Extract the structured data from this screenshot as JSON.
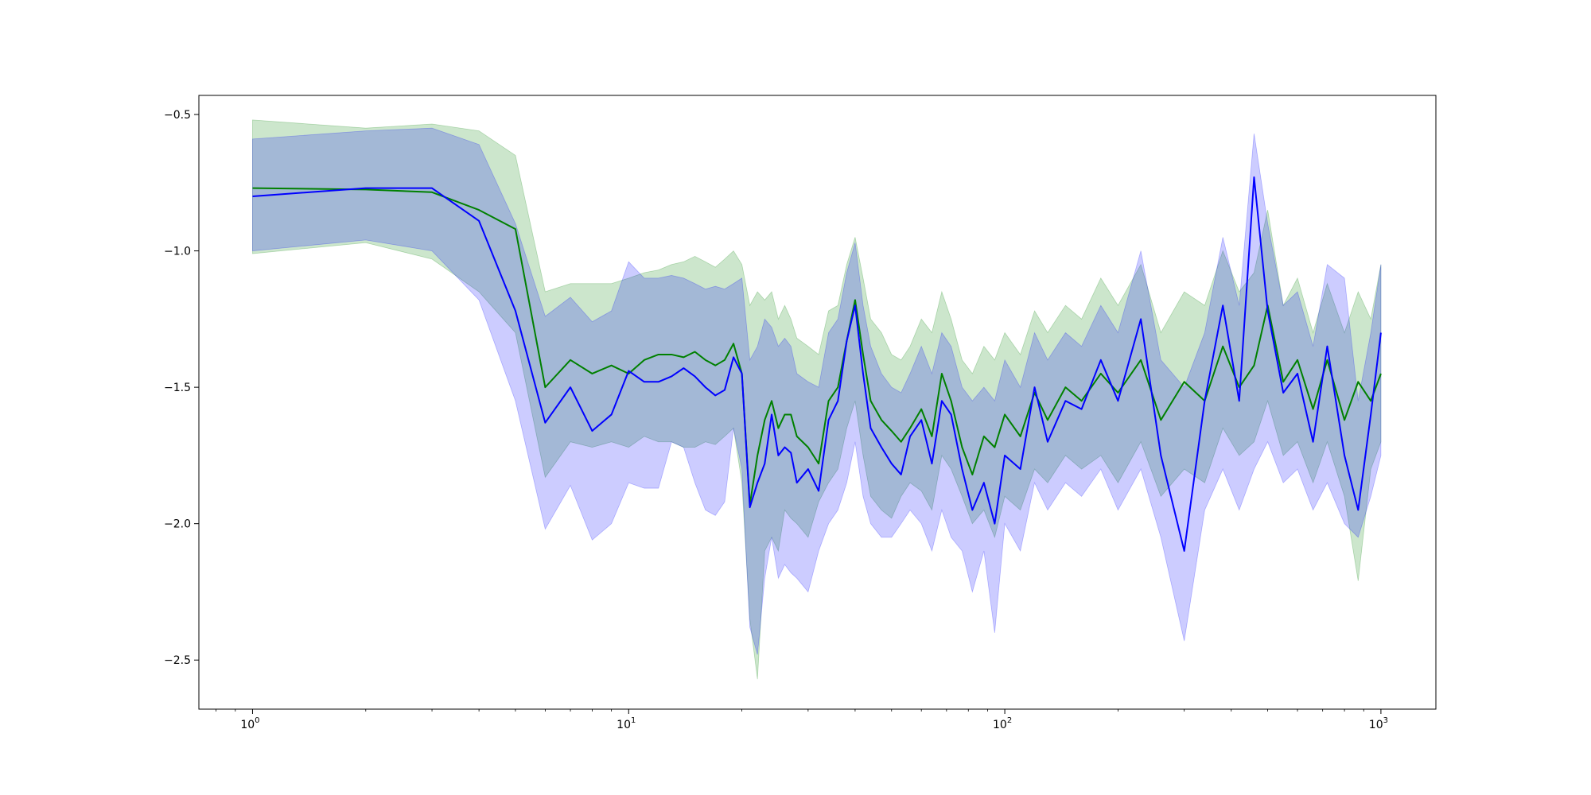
{
  "chart_data": {
    "type": "line",
    "title": "",
    "xlabel": "",
    "ylabel": "",
    "xscale": "log",
    "xlim": [
      0.72,
      1400
    ],
    "ylim": [
      -2.68,
      -0.43
    ],
    "grid": false,
    "legend": "none",
    "x_ticks": [
      {
        "base": "10",
        "exp": "0",
        "value": 1
      },
      {
        "base": "10",
        "exp": "1",
        "value": 10
      },
      {
        "base": "10",
        "exp": "2",
        "value": 100
      },
      {
        "base": "10",
        "exp": "3",
        "value": 1000
      }
    ],
    "y_ticks": [
      {
        "label": "−2.5",
        "value": -2.5
      },
      {
        "label": "−2.0",
        "value": -2.0
      },
      {
        "label": "−1.5",
        "value": -1.5
      },
      {
        "label": "−1.0",
        "value": -1.0
      },
      {
        "label": "−0.5",
        "value": -0.5
      }
    ],
    "series": [
      {
        "color": "#008000",
        "band_color": "#008000",
        "band_opacity": 0.2,
        "x": [
          1,
          2,
          3,
          4,
          5,
          6,
          7,
          8,
          9,
          10,
          11,
          12,
          13,
          14,
          15,
          16,
          17,
          18,
          19,
          20,
          21,
          22,
          23,
          24,
          25,
          26,
          27,
          28,
          30,
          32,
          34,
          36,
          38,
          40,
          42,
          44,
          47,
          50,
          53,
          56,
          60,
          64,
          68,
          72,
          77,
          82,
          88,
          94,
          100,
          110,
          120,
          130,
          145,
          160,
          180,
          200,
          230,
          260,
          300,
          340,
          380,
          420,
          460,
          500,
          550,
          600,
          660,
          720,
          800,
          870,
          940,
          1000
        ],
        "y": [
          -0.77,
          -0.775,
          -0.785,
          -0.85,
          -0.92,
          -1.5,
          -1.4,
          -1.45,
          -1.42,
          -1.45,
          -1.4,
          -1.38,
          -1.38,
          -1.39,
          -1.37,
          -1.4,
          -1.42,
          -1.4,
          -1.34,
          -1.45,
          -1.93,
          -1.75,
          -1.62,
          -1.55,
          -1.65,
          -1.6,
          -1.6,
          -1.68,
          -1.72,
          -1.78,
          -1.55,
          -1.5,
          -1.33,
          -1.18,
          -1.38,
          -1.55,
          -1.62,
          -1.66,
          -1.7,
          -1.65,
          -1.58,
          -1.68,
          -1.45,
          -1.55,
          -1.72,
          -1.82,
          -1.68,
          -1.72,
          -1.6,
          -1.68,
          -1.52,
          -1.62,
          -1.5,
          -1.55,
          -1.45,
          -1.52,
          -1.4,
          -1.62,
          -1.48,
          -1.55,
          -1.35,
          -1.5,
          -1.42,
          -1.2,
          -1.48,
          -1.4,
          -1.58,
          -1.4,
          -1.62,
          -1.48,
          -1.55,
          -1.45
        ],
        "lower": [
          -1.01,
          -0.97,
          -1.03,
          -1.15,
          -1.3,
          -1.83,
          -1.7,
          -1.72,
          -1.7,
          -1.72,
          -1.68,
          -1.7,
          -1.7,
          -1.72,
          -1.72,
          -1.7,
          -1.71,
          -1.68,
          -1.65,
          -1.85,
          -2.35,
          -2.57,
          -2.1,
          -2.05,
          -2.1,
          -1.95,
          -1.98,
          -2.0,
          -2.05,
          -1.92,
          -1.85,
          -1.8,
          -1.65,
          -1.55,
          -1.75,
          -1.9,
          -1.95,
          -1.98,
          -1.9,
          -1.85,
          -1.88,
          -1.95,
          -1.75,
          -1.8,
          -1.9,
          -2.0,
          -1.95,
          -2.05,
          -1.9,
          -1.95,
          -1.8,
          -1.85,
          -1.75,
          -1.8,
          -1.75,
          -1.85,
          -1.7,
          -1.9,
          -1.8,
          -1.85,
          -1.65,
          -1.75,
          -1.7,
          -1.55,
          -1.75,
          -1.7,
          -1.85,
          -1.7,
          -1.9,
          -2.21,
          -1.8,
          -1.7
        ],
        "upper": [
          -0.52,
          -0.55,
          -0.535,
          -0.56,
          -0.65,
          -1.15,
          -1.12,
          -1.12,
          -1.12,
          -1.1,
          -1.08,
          -1.07,
          -1.05,
          -1.04,
          -1.02,
          -1.04,
          -1.06,
          -1.03,
          -1.0,
          -1.05,
          -1.2,
          -1.15,
          -1.18,
          -1.15,
          -1.25,
          -1.2,
          -1.25,
          -1.32,
          -1.35,
          -1.38,
          -1.22,
          -1.2,
          -1.05,
          -0.95,
          -1.1,
          -1.25,
          -1.3,
          -1.38,
          -1.4,
          -1.35,
          -1.25,
          -1.3,
          -1.15,
          -1.25,
          -1.4,
          -1.45,
          -1.35,
          -1.4,
          -1.3,
          -1.38,
          -1.22,
          -1.3,
          -1.2,
          -1.25,
          -1.1,
          -1.2,
          -1.05,
          -1.3,
          -1.15,
          -1.2,
          -1.0,
          -1.15,
          -1.08,
          -0.85,
          -1.2,
          -1.1,
          -1.3,
          -1.12,
          -1.3,
          -1.15,
          -1.25,
          -1.05
        ]
      },
      {
        "color": "#0000ff",
        "band_color": "#0000ff",
        "band_opacity": 0.2,
        "x": [
          1,
          2,
          3,
          4,
          5,
          6,
          7,
          8,
          9,
          10,
          11,
          12,
          13,
          14,
          15,
          16,
          17,
          18,
          19,
          20,
          21,
          22,
          23,
          24,
          25,
          26,
          27,
          28,
          30,
          32,
          34,
          36,
          38,
          40,
          42,
          44,
          47,
          50,
          53,
          56,
          60,
          64,
          68,
          72,
          77,
          82,
          88,
          94,
          100,
          110,
          120,
          130,
          145,
          160,
          180,
          200,
          230,
          260,
          300,
          340,
          380,
          420,
          460,
          500,
          550,
          600,
          660,
          720,
          800,
          870,
          940,
          1000
        ],
        "y": [
          -0.8,
          -0.77,
          -0.77,
          -0.89,
          -1.22,
          -1.63,
          -1.5,
          -1.66,
          -1.6,
          -1.44,
          -1.48,
          -1.48,
          -1.46,
          -1.43,
          -1.46,
          -1.5,
          -1.53,
          -1.51,
          -1.39,
          -1.45,
          -1.94,
          -1.85,
          -1.78,
          -1.6,
          -1.75,
          -1.72,
          -1.74,
          -1.85,
          -1.8,
          -1.88,
          -1.62,
          -1.55,
          -1.33,
          -1.2,
          -1.45,
          -1.65,
          -1.72,
          -1.78,
          -1.82,
          -1.68,
          -1.62,
          -1.78,
          -1.55,
          -1.6,
          -1.8,
          -1.95,
          -1.85,
          -2.0,
          -1.75,
          -1.8,
          -1.5,
          -1.7,
          -1.55,
          -1.58,
          -1.4,
          -1.55,
          -1.25,
          -1.75,
          -2.1,
          -1.55,
          -1.2,
          -1.55,
          -0.73,
          -1.22,
          -1.52,
          -1.45,
          -1.7,
          -1.35,
          -1.75,
          -1.95,
          -1.6,
          -1.3
        ],
        "lower": [
          -1.0,
          -0.96,
          -1.0,
          -1.18,
          -1.55,
          -2.02,
          -1.86,
          -2.06,
          -2.0,
          -1.85,
          -1.87,
          -1.87,
          -1.7,
          -1.72,
          -1.85,
          -1.95,
          -1.97,
          -1.92,
          -1.65,
          -1.8,
          -2.38,
          -2.48,
          -2.2,
          -2.05,
          -2.2,
          -2.15,
          -2.18,
          -2.2,
          -2.25,
          -2.1,
          -2.0,
          -1.95,
          -1.85,
          -1.7,
          -1.9,
          -2.0,
          -2.05,
          -2.05,
          -2.0,
          -1.95,
          -2.0,
          -2.1,
          -1.95,
          -2.05,
          -2.1,
          -2.25,
          -2.1,
          -2.4,
          -2.0,
          -2.1,
          -1.85,
          -1.95,
          -1.85,
          -1.9,
          -1.8,
          -1.95,
          -1.8,
          -2.05,
          -2.43,
          -1.95,
          -1.8,
          -1.95,
          -1.8,
          -1.7,
          -1.85,
          -1.8,
          -1.95,
          -1.85,
          -2.0,
          -2.05,
          -1.9,
          -1.75
        ],
        "upper": [
          -0.59,
          -0.56,
          -0.55,
          -0.61,
          -0.9,
          -1.24,
          -1.17,
          -1.26,
          -1.22,
          -1.04,
          -1.1,
          -1.1,
          -1.09,
          -1.1,
          -1.12,
          -1.14,
          -1.13,
          -1.14,
          -1.12,
          -1.1,
          -1.4,
          -1.35,
          -1.25,
          -1.28,
          -1.35,
          -1.32,
          -1.35,
          -1.45,
          -1.48,
          -1.5,
          -1.3,
          -1.25,
          -1.08,
          -0.97,
          -1.2,
          -1.35,
          -1.45,
          -1.5,
          -1.52,
          -1.45,
          -1.35,
          -1.45,
          -1.3,
          -1.35,
          -1.5,
          -1.55,
          -1.5,
          -1.55,
          -1.4,
          -1.5,
          -1.3,
          -1.4,
          -1.3,
          -1.35,
          -1.2,
          -1.3,
          -1.0,
          -1.4,
          -1.5,
          -1.3,
          -0.95,
          -1.2,
          -0.57,
          -0.9,
          -1.2,
          -1.15,
          -1.35,
          -1.05,
          -1.1,
          -1.55,
          -1.3,
          -1.05
        ]
      }
    ]
  }
}
